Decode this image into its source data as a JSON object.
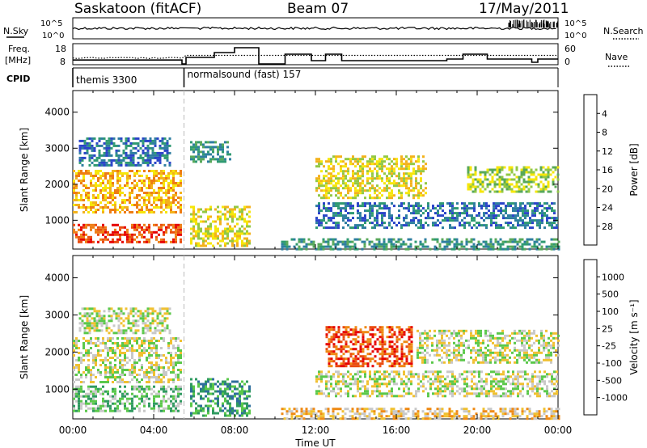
{
  "header": {
    "station": "Saskatoon (fitACF)",
    "beam": "Beam 07",
    "date": "17/May/2011"
  },
  "status_panels": {
    "nsky_label": "N.Sky",
    "nsky_ticks": [
      "10^5",
      "10^0"
    ],
    "nsearch_label": "N.Search",
    "nsearch_ticks": [
      "10^5",
      "10^0"
    ],
    "freq_label": "Freq.",
    "freq_unit": "[MHz]",
    "freq_ticks": [
      "18",
      "8"
    ],
    "nave_label": "Nave",
    "nave_ticks": [
      "60",
      "0"
    ],
    "cpid_label": "CPID",
    "cpid_segments": [
      {
        "start_h": 0.0,
        "end_h": 5.5,
        "label": "themis 3300"
      },
      {
        "start_h": 5.5,
        "end_h": 24.0,
        "label": "normalsound (fast) 157"
      }
    ]
  },
  "chart_data": [
    {
      "type": "heatmap",
      "title": "",
      "xlabel": "Time UT",
      "ylabel": "Slant Range [km]",
      "xlim": [
        0,
        24
      ],
      "ylim": [
        200,
        4600
      ],
      "xticks": [
        "00:00",
        "04:00",
        "08:00",
        "12:00",
        "16:00",
        "20:00",
        "00:00"
      ],
      "yticks": [
        1000,
        2000,
        3000,
        4000
      ],
      "colorbar": {
        "label": "Power [dB]",
        "ticks": [
          "4",
          "8",
          "12",
          "16",
          "20",
          "24",
          "28"
        ],
        "colors": [
          "#0000ee",
          "#2a44c8",
          "#2e7ea0",
          "#2f9a72",
          "#58a85a",
          "#92c844",
          "#f6e60a",
          "#f3b21c",
          "#ee7d14",
          "#e94d10",
          "#e60000"
        ]
      },
      "regions": [
        {
          "t0": 0.0,
          "t1": 5.3,
          "r0": 400,
          "r1": 900,
          "level": 9
        },
        {
          "t0": 0.0,
          "t1": 5.3,
          "r0": 1200,
          "r1": 2400,
          "level": 7
        },
        {
          "t0": 0.3,
          "t1": 4.8,
          "r0": 2500,
          "r1": 3300,
          "level": 2
        },
        {
          "t0": 5.8,
          "t1": 8.8,
          "r0": 300,
          "r1": 1400,
          "level": 6
        },
        {
          "t0": 5.8,
          "t1": 7.8,
          "r0": 2600,
          "r1": 3200,
          "level": 3
        },
        {
          "t0": 10.3,
          "t1": 24.0,
          "r0": 200,
          "r1": 500,
          "level": 3
        },
        {
          "t0": 12.0,
          "t1": 17.5,
          "r0": 1600,
          "r1": 2800,
          "level": 6
        },
        {
          "t0": 12.0,
          "t1": 24.0,
          "r0": 800,
          "r1": 1500,
          "level": 2
        },
        {
          "t0": 19.5,
          "t1": 24.0,
          "r0": 1800,
          "r1": 2500,
          "level": 5
        }
      ]
    },
    {
      "type": "heatmap",
      "title": "",
      "xlabel": "Time UT",
      "ylabel": "Slant Range [km]",
      "xlim": [
        0,
        24
      ],
      "ylim": [
        200,
        4600
      ],
      "xticks": [
        "00:00",
        "04:00",
        "08:00",
        "12:00",
        "16:00",
        "20:00",
        "00:00"
      ],
      "yticks": [
        1000,
        2000,
        3000,
        4000
      ],
      "colorbar": {
        "label": "Velocity [m s⁻¹]",
        "ticks": [
          "1000",
          "500",
          "100",
          "25",
          "-25",
          "-100",
          "-500",
          "-1000"
        ],
        "colors": [
          "#1a32c8",
          "#2e6e9c",
          "#2f9a60",
          "#5ac84a",
          "#c8c8c8",
          "#f0c030",
          "#ef8a14",
          "#ea4c10",
          "#e60000"
        ]
      },
      "regions": [
        {
          "t0": 0.0,
          "t1": 5.3,
          "r0": 1200,
          "r1": 2400,
          "level": 4
        },
        {
          "t0": 0.0,
          "t1": 5.3,
          "r0": 400,
          "r1": 1100,
          "level": 3
        },
        {
          "t0": 0.3,
          "t1": 4.8,
          "r0": 2500,
          "r1": 3200,
          "level": 4
        },
        {
          "t0": 5.8,
          "t1": 8.8,
          "r0": 300,
          "r1": 1300,
          "level": 2
        },
        {
          "t0": 10.3,
          "t1": 24.0,
          "r0": 200,
          "r1": 500,
          "level": 5
        },
        {
          "t0": 12.5,
          "t1": 16.8,
          "r0": 1600,
          "r1": 2700,
          "level": 7
        },
        {
          "t0": 12.0,
          "t1": 24.0,
          "r0": 800,
          "r1": 1500,
          "level": 4
        },
        {
          "t0": 17.0,
          "t1": 24.0,
          "r0": 1700,
          "r1": 2600,
          "level": 4
        }
      ]
    }
  ]
}
